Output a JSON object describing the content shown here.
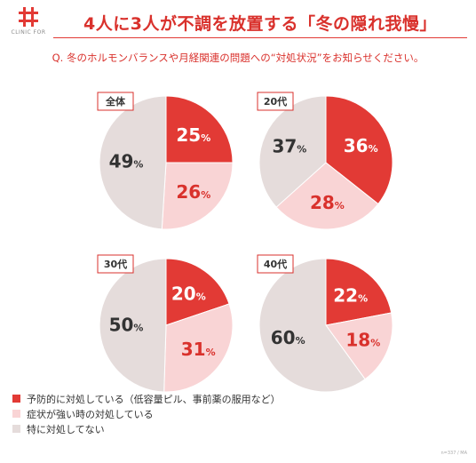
{
  "logo": {
    "name": "CLINIC FOR"
  },
  "header": {
    "title": "4人に3人が不調を放置する「冬の隠れ我慢」",
    "question": "Q. 冬のホルモンバランスや月経関連の問題への“対処状況”をお知らせください。"
  },
  "chart_data": {
    "type": "pie",
    "unit": "%",
    "categories": [
      "予防的に対処している（低容量ピル、事前薬の服用など）",
      "症状が強い時の対処している",
      "特に対処してない"
    ],
    "colors": [
      "#e23a35",
      "#f9d4d5",
      "#e5dcdb"
    ],
    "label_colors": [
      "#ffffff",
      "#d9312c",
      "#333333"
    ],
    "charts": [
      {
        "title": "全体",
        "values": [
          25,
          26,
          49
        ]
      },
      {
        "title": "20代",
        "values": [
          36,
          28,
          37
        ]
      },
      {
        "title": "30代",
        "values": [
          20,
          31,
          50
        ]
      },
      {
        "title": "40代",
        "values": [
          22,
          18,
          60
        ]
      }
    ]
  },
  "footnote": "n=337 / MA"
}
